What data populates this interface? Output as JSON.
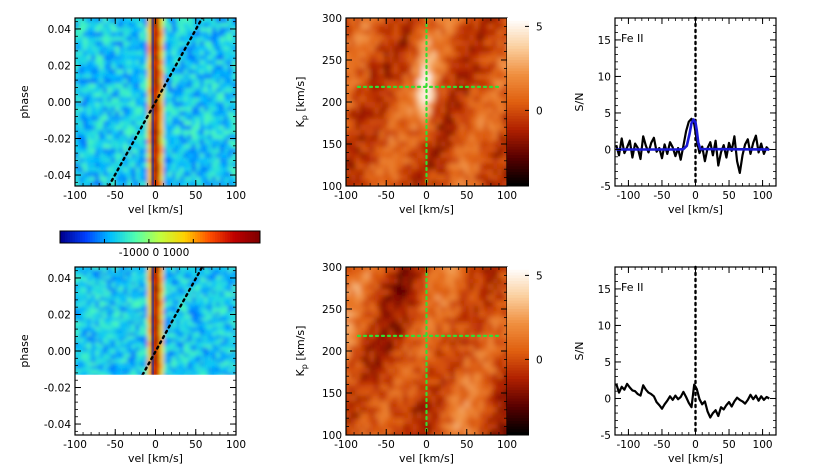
{
  "colors": {
    "jet": [
      "#00008f",
      "#0040ff",
      "#00c0ff",
      "#50ffb0",
      "#c0ff40",
      "#ffd000",
      "#ff5000",
      "#c00000",
      "#800000"
    ],
    "heat": [
      "#000000",
      "#5a0000",
      "#b02000",
      "#e06010",
      "#f09040",
      "#fbd0a0",
      "#ffffff"
    ],
    "dotted_trail": "#000000",
    "crosshair": "#33dd33",
    "model_line": "#1a1ad6",
    "data_line": "#000000"
  },
  "chart_data": [
    {
      "id": "phase-map-top",
      "type": "heatmap",
      "colormap": "jet",
      "xlabel": "vel [km/s]",
      "ylabel": "phase",
      "xlim": [
        -100,
        100
      ],
      "ylim": [
        -0.046,
        0.046
      ],
      "xticks": [
        -100,
        -50,
        0,
        50,
        100
      ],
      "yticks": [
        -0.04,
        -0.02,
        0.0,
        0.02,
        0.04
      ],
      "ytick_labels": [
        "-0.04",
        "-0.02",
        "0.00",
        "0.02",
        "0.04"
      ],
      "data_phase_range": [
        -0.046,
        0.046
      ],
      "stellar_streak_velocity": 0,
      "planet_trail": [
        [
          -58,
          -0.046
        ],
        [
          58,
          0.046
        ]
      ]
    },
    {
      "id": "kp-map-top",
      "type": "heatmap",
      "colormap": "heat",
      "xlabel": "vel [km/s]",
      "ylabel": "Kp [km/s]",
      "ylabel_main": "K",
      "ylabel_sub": "p",
      "ylabel_tail": " [km/s]",
      "xlim": [
        -100,
        100
      ],
      "ylim": [
        100,
        300
      ],
      "xticks": [
        -100,
        -50,
        0,
        50,
        100
      ],
      "yticks": [
        100,
        150,
        200,
        250,
        300
      ],
      "crosshair": {
        "x": 0,
        "y": 218
      },
      "colorbar": {
        "ticks": [
          5,
          0
        ],
        "range": [
          -4.5,
          5.5
        ]
      }
    },
    {
      "id": "sn-top",
      "type": "line",
      "annotation": "Fe II",
      "xlabel": "vel [km/s]",
      "ylabel": "S/N",
      "xlim": [
        -120,
        120
      ],
      "ylim": [
        -5,
        18
      ],
      "xticks": [
        -100,
        -50,
        0,
        50,
        100
      ],
      "yticks": [
        -5,
        0,
        5,
        10,
        15
      ],
      "vline_x": 0,
      "series": [
        {
          "role": "data",
          "x": [
            -118,
            -114,
            -110,
            -106,
            -102,
            -98,
            -94,
            -90,
            -86,
            -82,
            -78,
            -74,
            -70,
            -66,
            -62,
            -58,
            -54,
            -50,
            -46,
            -42,
            -38,
            -34,
            -30,
            -26,
            -22,
            -18,
            -14,
            -10,
            -6,
            -2,
            2,
            6,
            10,
            14,
            18,
            22,
            26,
            30,
            34,
            38,
            42,
            46,
            50,
            54,
            58,
            62,
            66,
            70,
            74,
            78,
            82,
            86,
            90,
            94,
            98,
            102,
            106,
            110
          ],
          "y": [
            0.6,
            -0.8,
            1.5,
            -0.5,
            0.3,
            1.2,
            -1.1,
            0.8,
            0.2,
            -1.3,
            1.8,
            0.5,
            -0.4,
            0.9,
            1.6,
            -0.3,
            0.2,
            -1.2,
            0.7,
            -0.6,
            1.0,
            0.3,
            -0.9,
            0.2,
            -1.4,
            0.5,
            2.5,
            3.8,
            4.2,
            3.5,
            1.2,
            -0.5,
            0.4,
            -1.6,
            0.2,
            1.0,
            -0.8,
            1.2,
            -2.2,
            -0.4,
            0.6,
            -1.1,
            0.9,
            -0.2,
            1.8,
            -1.6,
            -3.2,
            -0.8,
            0.7,
            1.4,
            -0.6,
            0.9,
            1.9,
            -0.4,
            0.8,
            -0.6,
            0.3,
            -0.1
          ]
        },
        {
          "role": "model",
          "x": [
            -118,
            -25,
            -18,
            -13,
            -9,
            -6,
            -3,
            0,
            2,
            4,
            7,
            110
          ],
          "y": [
            0,
            0,
            0.05,
            0.5,
            2.1,
            3.6,
            4.1,
            3.7,
            2.6,
            1.0,
            0.05,
            0
          ]
        }
      ]
    },
    {
      "id": "colorbar-horizontal",
      "type": "heatmap",
      "colormap": "jet",
      "ticks": [
        -1000,
        0,
        1000
      ],
      "tick_labels": "-1000 0  1000",
      "range": [
        -2000,
        2500
      ]
    },
    {
      "id": "phase-map-bottom",
      "type": "heatmap",
      "colormap": "jet",
      "xlabel": "vel [km/s]",
      "ylabel": "phase",
      "xlim": [
        -100,
        100
      ],
      "ylim": [
        -0.046,
        0.046
      ],
      "xticks": [
        -100,
        -50,
        0,
        50,
        100
      ],
      "yticks": [
        -0.04,
        -0.02,
        0.0,
        0.02,
        0.04
      ],
      "ytick_labels": [
        "-0.04",
        "-0.02",
        "0.00",
        "0.02",
        "0.04"
      ],
      "data_phase_range": [
        -0.013,
        0.046
      ],
      "stellar_streak_velocity": 0,
      "planet_trail": [
        [
          -16,
          -0.013
        ],
        [
          58,
          0.046
        ]
      ]
    },
    {
      "id": "kp-map-bottom",
      "type": "heatmap",
      "colormap": "heat",
      "xlabel": "vel [km/s]",
      "ylabel": "Kp [km/s]",
      "ylabel_main": "K",
      "ylabel_sub": "p",
      "ylabel_tail": " [km/s]",
      "xlim": [
        -100,
        100
      ],
      "ylim": [
        100,
        300
      ],
      "xticks": [
        -100,
        -50,
        0,
        50,
        100
      ],
      "yticks": [
        100,
        150,
        200,
        250,
        300
      ],
      "crosshair": {
        "x": 0,
        "y": 218
      },
      "colorbar": {
        "ticks": [
          5,
          0
        ],
        "range": [
          -4.5,
          5.5
        ]
      }
    },
    {
      "id": "sn-bottom",
      "type": "line",
      "annotation": "Fe II",
      "xlabel": "vel [km/s]",
      "ylabel": "S/N",
      "xlim": [
        -120,
        120
      ],
      "ylim": [
        -5,
        18
      ],
      "xticks": [
        -100,
        -50,
        0,
        50,
        100
      ],
      "yticks": [
        -5,
        0,
        5,
        10,
        15
      ],
      "vline_x": 0,
      "series": [
        {
          "role": "data",
          "x": [
            -118,
            -114,
            -110,
            -106,
            -102,
            -98,
            -94,
            -90,
            -86,
            -82,
            -78,
            -74,
            -70,
            -66,
            -62,
            -58,
            -54,
            -50,
            -46,
            -42,
            -38,
            -34,
            -30,
            -26,
            -22,
            -18,
            -14,
            -10,
            -6,
            -2,
            2,
            6,
            10,
            14,
            18,
            22,
            26,
            30,
            34,
            38,
            42,
            46,
            50,
            54,
            58,
            62,
            66,
            70,
            74,
            78,
            82,
            86,
            90,
            94,
            98,
            102,
            106,
            110
          ],
          "y": [
            2.0,
            0.8,
            1.6,
            1.2,
            2.0,
            1.5,
            1.1,
            1.0,
            0.6,
            0.4,
            1.8,
            1.2,
            0.8,
            0.6,
            0.3,
            -0.5,
            -0.9,
            -1.4,
            -0.8,
            -0.3,
            0.3,
            -0.2,
            0.4,
            -0.1,
            0.2,
            0.9,
            0.2,
            -0.6,
            -1.2,
            1.9,
            1.3,
            -0.1,
            -0.8,
            -0.4,
            -1.8,
            -2.6,
            -2.0,
            -1.6,
            -2.4,
            -1.2,
            -1.5,
            -0.9,
            -0.5,
            -1.1,
            -0.4,
            0.1,
            -0.2,
            -0.4,
            -0.7,
            -0.2,
            0.5,
            -0.1,
            0.4,
            -0.3,
            0.3,
            -0.2,
            0.2,
            0.0
          ]
        }
      ]
    }
  ]
}
